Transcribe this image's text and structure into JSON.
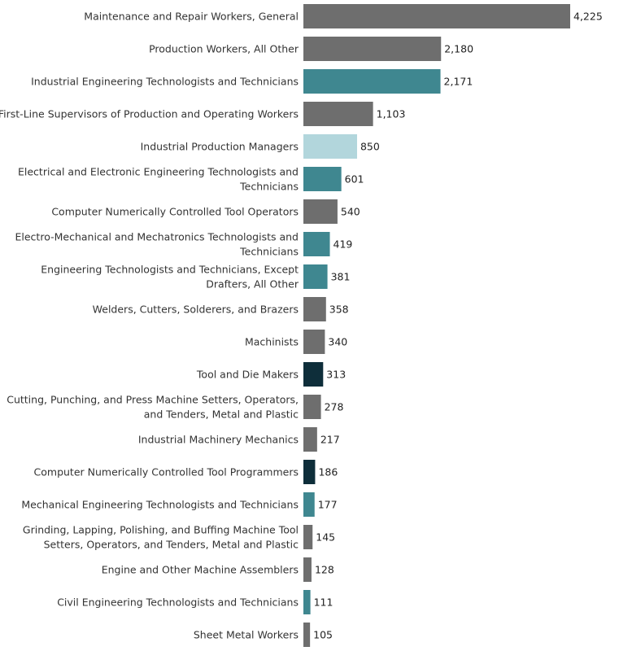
{
  "chart_data": {
    "type": "bar",
    "orientation": "horizontal",
    "title": "",
    "xlabel": "",
    "ylabel": "",
    "grid": false,
    "legend": "none",
    "categories": [
      [
        "Maintenance and Repair Workers, General"
      ],
      [
        "Production Workers, All Other"
      ],
      [
        "Industrial Engineering Technologists and Technicians"
      ],
      [
        "First-Line Supervisors of Production and Operating Workers"
      ],
      [
        "Industrial Production Managers"
      ],
      [
        "Electrical and Electronic Engineering Technologists and",
        "Technicians"
      ],
      [
        "Computer Numerically Controlled Tool Operators"
      ],
      [
        "Electro-Mechanical and Mechatronics Technologists and",
        "Technicians"
      ],
      [
        "Engineering Technologists and Technicians, Except",
        "Drafters, All Other"
      ],
      [
        "Welders, Cutters, Solderers, and Brazers"
      ],
      [
        "Machinists"
      ],
      [
        "Tool and Die Makers"
      ],
      [
        "Cutting, Punching, and Press Machine Setters, Operators,",
        "and Tenders, Metal and Plastic"
      ],
      [
        "Industrial Machinery Mechanics"
      ],
      [
        "Computer Numerically Controlled Tool Programmers"
      ],
      [
        "Mechanical Engineering Technologists and Technicians"
      ],
      [
        "Grinding, Lapping, Polishing, and Buffing Machine Tool",
        "Setters, Operators, and Tenders, Metal and Plastic"
      ],
      [
        "Engine and Other Machine Assemblers"
      ],
      [
        "Civil Engineering Technologists and Technicians"
      ],
      [
        "Sheet Metal Workers"
      ]
    ],
    "values": [
      4225,
      2180,
      2171,
      1103,
      850,
      601,
      540,
      419,
      381,
      358,
      340,
      313,
      278,
      217,
      186,
      177,
      145,
      128,
      111,
      105
    ],
    "value_labels": [
      "4,225",
      "2,180",
      "2,171",
      "1,103",
      "850",
      "601",
      "540",
      "419",
      "381",
      "358",
      "340",
      "313",
      "278",
      "217",
      "186",
      "177",
      "145",
      "128",
      "111",
      "105"
    ],
    "bar_colors": [
      "#6e6e6e",
      "#6e6e6e",
      "#3f8790",
      "#6e6e6e",
      "#b2d6dc",
      "#3f8790",
      "#6e6e6e",
      "#3f8790",
      "#3f8790",
      "#6e6e6e",
      "#6e6e6e",
      "#0e2e3a",
      "#6e6e6e",
      "#6e6e6e",
      "#0e2e3a",
      "#3f8790",
      "#6e6e6e",
      "#6e6e6e",
      "#3f8790",
      "#6e6e6e"
    ],
    "xlim": [
      0,
      4225
    ]
  }
}
